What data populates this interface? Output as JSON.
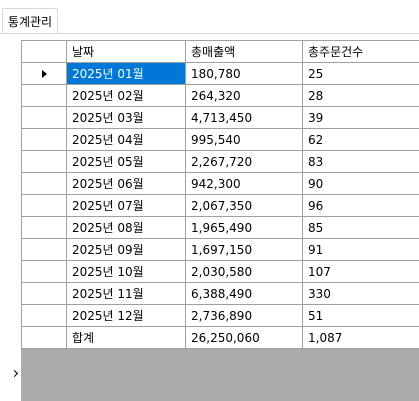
{
  "tab": {
    "label": "통계관리"
  },
  "grid": {
    "columns": [
      "날짜",
      "총매출액",
      "총주문건수"
    ],
    "selected_row": 0,
    "rows": [
      {
        "date": "2025년 01월",
        "sales": "180,780",
        "orders": "25"
      },
      {
        "date": "2025년 02월",
        "sales": "264,320",
        "orders": "28"
      },
      {
        "date": "2025년 03월",
        "sales": "4,713,450",
        "orders": "39"
      },
      {
        "date": "2025년 04월",
        "sales": "995,540",
        "orders": "62"
      },
      {
        "date": "2025년 05월",
        "sales": "2,267,720",
        "orders": "83"
      },
      {
        "date": "2025년 06월",
        "sales": "942,300",
        "orders": "90"
      },
      {
        "date": "2025년 07월",
        "sales": "2,067,350",
        "orders": "96"
      },
      {
        "date": "2025년 08월",
        "sales": "1,965,490",
        "orders": "85"
      },
      {
        "date": "2025년 09월",
        "sales": "1,697,150",
        "orders": "91"
      },
      {
        "date": "2025년 10월",
        "sales": "2,030,580",
        "orders": "107"
      },
      {
        "date": "2025년 11월",
        "sales": "6,388,490",
        "orders": "330"
      },
      {
        "date": "2025년 12월",
        "sales": "2,736,890",
        "orders": "51"
      },
      {
        "date": "합계",
        "sales": "26,250,060",
        "orders": "1,087"
      }
    ]
  },
  "colors": {
    "selection": "#0078d7",
    "grid_line": "#a0a0a0",
    "grid_background": "#ababab"
  },
  "icons": {
    "current_row": "current-row-arrow-icon",
    "cursor": "cursor-icon"
  }
}
